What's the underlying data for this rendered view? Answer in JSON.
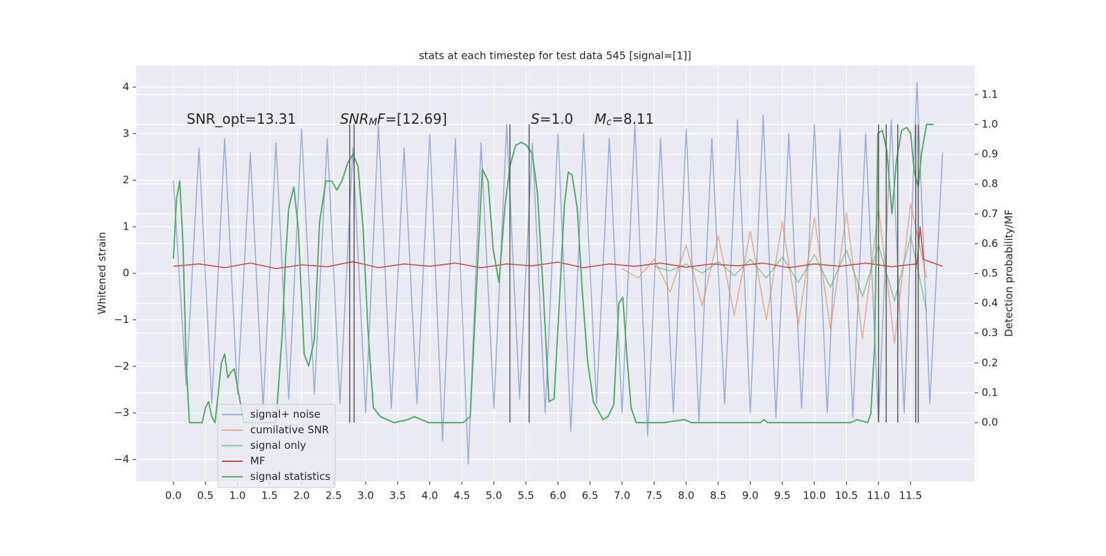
{
  "chart_data": {
    "type": "line",
    "title": "stats at each timestep for test data 545 [signal=[1]]",
    "ylabel": "Whitened strain",
    "y2label": "Detection probability/MF",
    "xlim": [
      -0.58,
      12.5
    ],
    "ylim": [
      -4.47,
      4.46
    ],
    "y2lim": [
      -0.197,
      1.197
    ],
    "xticks": [
      {
        "value": 0,
        "label": "0.0"
      },
      0.5,
      {
        "value": 1,
        "label": "1.0"
      },
      1.5,
      {
        "value": 2,
        "label": "2.0"
      },
      2.5,
      {
        "value": 3,
        "label": "3.0"
      },
      3.5,
      {
        "value": 4,
        "label": "4.0"
      },
      4.5,
      {
        "value": 5,
        "label": "5.0"
      },
      5.5,
      {
        "value": 6,
        "label": "6.0"
      },
      6.5,
      {
        "value": 7,
        "label": "7.0"
      },
      7.5,
      {
        "value": 8,
        "label": "8.0"
      },
      8.5,
      {
        "value": 9,
        "label": "9.0"
      },
      9.5,
      {
        "value": 10,
        "label": "10.0"
      },
      10.5,
      {
        "value": 11,
        "label": "11.0"
      },
      11.5
    ],
    "yticks": [
      {
        "value": -4,
        "label": "−4"
      },
      {
        "value": -3,
        "label": "−3"
      },
      {
        "value": -2,
        "label": "−2"
      },
      {
        "value": -1,
        "label": "−1"
      },
      0,
      1,
      2,
      3,
      4
    ],
    "y2ticks": [
      {
        "value": 0,
        "label": "0.0"
      },
      0.1,
      0.2,
      0.3,
      0.4,
      0.5,
      0.6,
      0.7,
      0.8,
      0.9,
      {
        "value": 1,
        "label": "1.0"
      },
      1.1
    ],
    "grid": true,
    "legend": "lower left",
    "vlines": [
      2.75,
      2.82,
      5.25,
      5.55,
      11.0,
      11.12,
      11.3,
      11.58,
      11.62
    ],
    "vline_range": [
      0,
      1
    ],
    "vline_color": "#555555",
    "annotations": [
      {
        "parts": [
          {
            "text": "SNR_opt=13.31"
          }
        ]
      },
      {
        "parts": [
          {
            "text": "SNR",
            "italic": true
          },
          {
            "text": "M",
            "italic": true,
            "sub": true
          },
          {
            "text": "F",
            "italic": true
          },
          {
            "text": "=[12.69]"
          }
        ]
      },
      {
        "parts": [
          {
            "text": "S",
            "italic": true
          },
          {
            "text": "=1.0"
          }
        ]
      },
      {
        "parts": [
          {
            "text": "M",
            "italic": true
          },
          {
            "text": "c",
            "italic": true,
            "sub": true
          },
          {
            "text": "=8.11"
          }
        ]
      }
    ],
    "series": [
      {
        "name": "signal+ noise",
        "color": "#4c72b0",
        "opacity": 0.5,
        "x": [
          0,
          0.2,
          0.4,
          0.6,
          0.8,
          1.0,
          1.2,
          1.4,
          1.6,
          1.8,
          2.0,
          2.2,
          2.4,
          2.6,
          2.8,
          3.0,
          3.2,
          3.4,
          3.6,
          3.8,
          4.0,
          4.2,
          4.4,
          4.6,
          4.8,
          5.0,
          5.2,
          5.4,
          5.6,
          5.8,
          6.0,
          6.2,
          6.4,
          6.6,
          6.8,
          7.0,
          7.2,
          7.4,
          7.6,
          7.8,
          8.0,
          8.2,
          8.4,
          8.6,
          8.8,
          9.0,
          9.2,
          9.4,
          9.6,
          9.8,
          10.0,
          10.2,
          10.4,
          10.6,
          10.8,
          11.0,
          11.2,
          11.4,
          11.6,
          11.8,
          12.0
        ],
        "values": [
          2.0,
          -2.4,
          2.7,
          -2.8,
          2.9,
          -2.6,
          2.6,
          -2.9,
          2.8,
          -2.7,
          3.1,
          -2.6,
          2.9,
          -2.8,
          2.7,
          -3.0,
          3.2,
          -2.9,
          2.7,
          -2.8,
          3.0,
          -3.6,
          2.9,
          -4.1,
          2.8,
          -2.9,
          3.2,
          -2.7,
          2.8,
          -3.0,
          3.0,
          -3.4,
          3.0,
          -2.8,
          2.9,
          -3.0,
          3.2,
          -3.5,
          2.9,
          -3.0,
          3.1,
          -3.2,
          2.9,
          -2.8,
          3.3,
          -3.0,
          3.4,
          -3.1,
          3.0,
          -2.9,
          3.2,
          -3.0,
          3.1,
          -3.1,
          3.0,
          -3.2,
          3.3,
          -3.0,
          4.1,
          -2.8,
          2.6
        ]
      },
      {
        "name": "cumilative SNR",
        "color": "#dd8452",
        "opacity": 0.6,
        "x": [
          7.0,
          7.25,
          7.5,
          7.75,
          8.0,
          8.25,
          8.5,
          8.75,
          9.0,
          9.25,
          9.5,
          9.75,
          10.0,
          10.25,
          10.5,
          10.75,
          11.0,
          11.25,
          11.5,
          11.75
        ],
        "values": [
          0.1,
          -0.1,
          0.3,
          -0.4,
          0.6,
          -0.7,
          0.8,
          -0.9,
          0.9,
          -1.0,
          1.1,
          -1.1,
          1.2,
          -1.2,
          1.3,
          -1.4,
          1.4,
          -1.5,
          1.5,
          -0.1
        ]
      },
      {
        "name": "signal only",
        "color": "#55a868",
        "opacity": 0.6,
        "x": [
          7.5,
          7.75,
          8.0,
          8.25,
          8.5,
          8.75,
          9.0,
          9.25,
          9.5,
          9.75,
          10.0,
          10.25,
          10.5,
          10.75,
          11.0,
          11.25,
          11.5,
          11.75
        ],
        "values": [
          0.15,
          0.05,
          0.2,
          0.0,
          0.25,
          -0.05,
          0.3,
          -0.1,
          0.35,
          -0.2,
          0.4,
          -0.3,
          0.5,
          -0.5,
          0.6,
          -0.6,
          0.8,
          -0.8
        ]
      },
      {
        "name": "MF",
        "color": "#c44e52",
        "opacity": 1,
        "x": [
          0,
          0.4,
          0.8,
          1.2,
          1.6,
          2.0,
          2.4,
          2.8,
          3.2,
          3.6,
          4.0,
          4.4,
          4.8,
          5.2,
          5.6,
          6.0,
          6.4,
          6.8,
          7.2,
          7.6,
          8.0,
          8.4,
          8.8,
          9.2,
          9.6,
          10.0,
          10.4,
          10.8,
          11.2,
          11.6,
          11.65,
          11.7,
          12.0
        ],
        "values": [
          0.15,
          0.2,
          0.12,
          0.22,
          0.1,
          0.18,
          0.14,
          0.25,
          0.12,
          0.2,
          0.15,
          0.22,
          0.12,
          0.2,
          0.16,
          0.24,
          0.12,
          0.2,
          0.15,
          0.22,
          0.13,
          0.2,
          0.16,
          0.22,
          0.12,
          0.2,
          0.15,
          0.22,
          0.14,
          0.2,
          1.0,
          0.3,
          0.15
        ]
      },
      {
        "name": "signal statistics",
        "color": "#55a868",
        "opacity": 1,
        "axis": "y2",
        "x": [
          0,
          0.05,
          0.1,
          0.15,
          0.2,
          0.25,
          0.35,
          0.45,
          0.5,
          0.55,
          0.6,
          0.65,
          0.75,
          0.8,
          0.85,
          0.9,
          0.95,
          1.0,
          1.1,
          1.3,
          1.6,
          1.7,
          1.75,
          1.8,
          1.88,
          1.95,
          2.04,
          2.11,
          2.2,
          2.28,
          2.38,
          2.47,
          2.55,
          2.63,
          2.72,
          2.8,
          2.88,
          2.96,
          3.03,
          3.12,
          3.23,
          3.44,
          3.66,
          3.76,
          3.87,
          3.98,
          4.52,
          4.63,
          4.71,
          4.82,
          4.91,
          4.99,
          5.08,
          5.17,
          5.25,
          5.34,
          5.43,
          5.51,
          5.6,
          5.68,
          5.77,
          5.86,
          5.94,
          6.03,
          6.1,
          6.16,
          6.22,
          6.3,
          6.38,
          6.46,
          6.55,
          6.63,
          6.7,
          6.78,
          6.87,
          6.95,
          7.01,
          7.08,
          7.14,
          7.22,
          7.65,
          7.97,
          8.08,
          9.16,
          9.21,
          9.27,
          10.56,
          10.67,
          10.83,
          10.88,
          10.94,
          10.99,
          11.06,
          11.13,
          11.21,
          11.28,
          11.36,
          11.44,
          11.5,
          11.56,
          11.62,
          11.67,
          11.75,
          11.86
        ],
        "values": [
          0.55,
          0.75,
          0.81,
          0.6,
          0.2,
          0.0,
          0.0,
          0.0,
          0.05,
          0.07,
          0.02,
          0.0,
          0.2,
          0.23,
          0.15,
          0.17,
          0.18,
          0.12,
          0.0,
          0.0,
          0.0,
          0.3,
          0.55,
          0.72,
          0.79,
          0.65,
          0.23,
          0.19,
          0.28,
          0.67,
          0.81,
          0.81,
          0.78,
          0.81,
          0.87,
          0.9,
          0.86,
          0.65,
          0.33,
          0.05,
          0.02,
          0.0,
          0.01,
          0.02,
          0.01,
          0.0,
          0.0,
          0.02,
          0.37,
          0.85,
          0.81,
          0.58,
          0.47,
          0.72,
          0.86,
          0.93,
          0.94,
          0.93,
          0.9,
          0.77,
          0.44,
          0.07,
          0.08,
          0.44,
          0.73,
          0.84,
          0.83,
          0.72,
          0.44,
          0.21,
          0.07,
          0.04,
          0.01,
          0.02,
          0.06,
          0.4,
          0.42,
          0.21,
          0.05,
          0.0,
          0.0,
          0.01,
          0.0,
          0.0,
          0.01,
          0.0,
          0.0,
          0.01,
          0.0,
          0.03,
          0.26,
          0.97,
          0.98,
          0.91,
          0.7,
          0.88,
          0.98,
          0.99,
          0.97,
          0.84,
          0.79,
          0.9,
          1.0,
          1.0
        ]
      }
    ]
  }
}
